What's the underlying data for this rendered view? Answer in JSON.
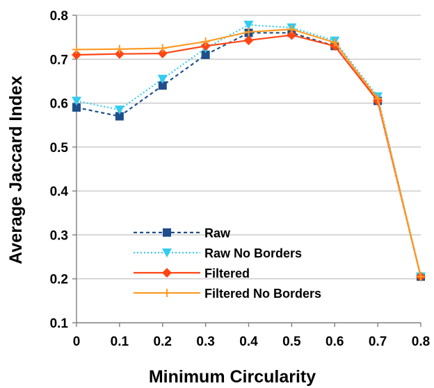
{
  "chart_data": {
    "type": "line",
    "title": "",
    "xlabel": "Minimum Circularity",
    "ylabel": "Average Jaccard Index",
    "x": [
      0,
      0.1,
      0.2,
      0.3,
      0.4,
      0.5,
      0.6,
      0.7,
      0.8
    ],
    "x_tick_labels": [
      "0",
      "0.1",
      "0.2",
      "0.3",
      "0.4",
      "0.5",
      "0.6",
      "0.7",
      "0.8"
    ],
    "y_tick_labels": [
      "0.1",
      "0.2",
      "0.3",
      "0.4",
      "0.5",
      "0.6",
      "0.7",
      "0.8"
    ],
    "xlim": [
      0,
      0.8
    ],
    "ylim": [
      0.1,
      0.8
    ],
    "grid": "horizontal",
    "legend_position": "lower-left",
    "series": [
      {
        "name": "Raw",
        "values": [
          0.59,
          0.57,
          0.64,
          0.71,
          0.76,
          0.76,
          0.73,
          0.605,
          0.205
        ],
        "color": "#1f4e8c",
        "line_style": "dashed",
        "marker": "square"
      },
      {
        "name": "Raw No Borders",
        "values": [
          0.605,
          0.585,
          0.655,
          0.725,
          0.778,
          0.772,
          0.742,
          0.615,
          0.205
        ],
        "color": "#33ccee",
        "line_style": "dotted",
        "marker": "triangle-down"
      },
      {
        "name": "Filtered",
        "values": [
          0.71,
          0.712,
          0.713,
          0.73,
          0.743,
          0.755,
          0.73,
          0.605,
          0.205
        ],
        "color": "#ff4513",
        "line_style": "solid",
        "marker": "diamond"
      },
      {
        "name": "Filtered No Borders",
        "values": [
          0.722,
          0.723,
          0.725,
          0.74,
          0.762,
          0.768,
          0.738,
          0.61,
          0.205
        ],
        "color": "#ff9b24",
        "line_style": "solid",
        "marker": "plus"
      }
    ]
  }
}
